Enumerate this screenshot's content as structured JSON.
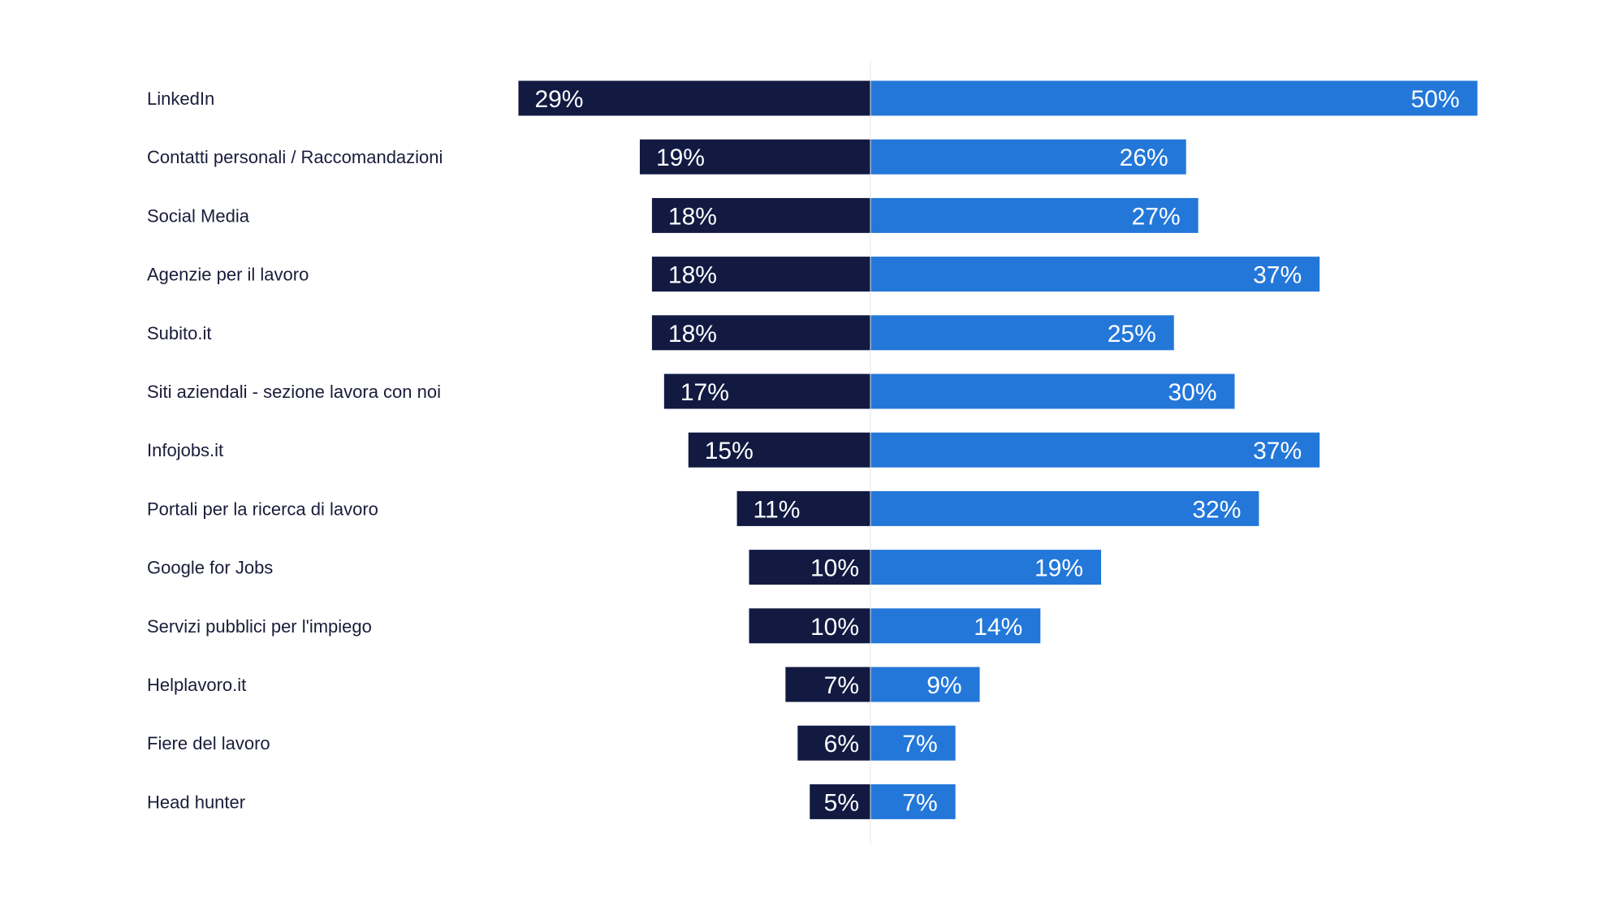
{
  "chart_data": {
    "type": "bar",
    "orientation": "diverging-horizontal",
    "categories": [
      "LinkedIn",
      "Contatti personali / Raccomandazioni",
      "Social Media",
      "Agenzie per il lavoro",
      "Subito.it",
      "Siti aziendali - sezione lavora con noi",
      "Infojobs.it",
      "Portali per la ricerca di lavoro",
      "Google for Jobs",
      "Servizi pubblici per l'impiego",
      "Helplavoro.it",
      "Fiere del lavoro",
      "Head hunter"
    ],
    "series": [
      {
        "side": "left",
        "color": "#121a42",
        "values": [
          29,
          19,
          18,
          18,
          18,
          17,
          15,
          11,
          10,
          10,
          7,
          6,
          5
        ],
        "labels": [
          "29%",
          "19%",
          "18%",
          "18%",
          "18%",
          "17%",
          "15%",
          "11%",
          "10%",
          "10%",
          "7%",
          "6%",
          "5%"
        ]
      },
      {
        "side": "right",
        "color": "#2377d9",
        "values": [
          50,
          26,
          27,
          37,
          25,
          30,
          37,
          32,
          19,
          14,
          9,
          7,
          7
        ],
        "labels": [
          "50%",
          "26%",
          "27%",
          "37%",
          "25%",
          "30%",
          "37%",
          "32%",
          "19%",
          "14%",
          "9%",
          "7%",
          "7%"
        ]
      }
    ],
    "value_unit": "%",
    "grid": false,
    "legend": "none"
  }
}
